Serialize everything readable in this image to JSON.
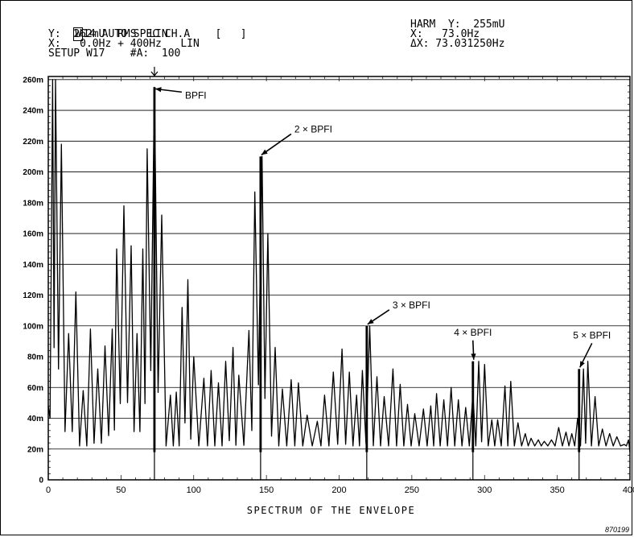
{
  "header": {
    "trace_label": "W",
    "line1": "14 AUTO SPEC CH.A    [   ]",
    "line2": "Y:  262mU  RMS  LIN",
    "line3": "X:   0.0Hz + 400Hz   LIN",
    "line4": "SETUP W17    #A:  100",
    "cursor_line1": "HARM  Y:  255mU",
    "cursor_line2": "X:   73.0Hz",
    "cursor_line3": "ΔX: 73.031250Hz"
  },
  "figure_id": "870199",
  "chart_data": {
    "type": "line",
    "title": "",
    "xlabel": "SPECTRUM OF THE ENVELOPE",
    "ylabel": "",
    "xlim": [
      0,
      400
    ],
    "ylim": [
      0,
      262
    ],
    "x_ticks": [
      0,
      50,
      100,
      150,
      200,
      250,
      300,
      350,
      400
    ],
    "x_tick_labels": [
      "0",
      "50",
      "100",
      "150",
      "200",
      "250",
      "300",
      "350",
      "400"
    ],
    "y_ticks": [
      0,
      20,
      40,
      60,
      80,
      100,
      120,
      140,
      160,
      180,
      200,
      220,
      240,
      260
    ],
    "y_tick_labels": [
      "0",
      "20m",
      "40m",
      "60m",
      "80m",
      "100m",
      "120m",
      "140m",
      "160m",
      "180m",
      "200m",
      "220m",
      "240m",
      "260m"
    ],
    "grid": "horizontal",
    "cursor_x": 73,
    "series": [
      {
        "peaks": [
          [
            3,
            260
          ],
          [
            5,
            260
          ],
          [
            9,
            218
          ],
          [
            14,
            95
          ],
          [
            19,
            122
          ],
          [
            24,
            58
          ],
          [
            29,
            98
          ],
          [
            34,
            72
          ],
          [
            39,
            87
          ],
          [
            44,
            98
          ],
          [
            47,
            150
          ],
          [
            52,
            178
          ],
          [
            57,
            152
          ],
          [
            61,
            95
          ],
          [
            65,
            150
          ],
          [
            68,
            215
          ],
          [
            73,
            255
          ],
          [
            78,
            172
          ],
          [
            84,
            55
          ],
          [
            88,
            57
          ],
          [
            92,
            112
          ],
          [
            96,
            130
          ],
          [
            100,
            80
          ],
          [
            107,
            66
          ],
          [
            112,
            71
          ],
          [
            117,
            63
          ],
          [
            122,
            77
          ],
          [
            127,
            86
          ],
          [
            131,
            68
          ],
          [
            138,
            97
          ],
          [
            142,
            187
          ],
          [
            147,
            210
          ],
          [
            151,
            160
          ],
          [
            156,
            86
          ],
          [
            161,
            59
          ],
          [
            167,
            65
          ],
          [
            172,
            63
          ],
          [
            178,
            42
          ],
          [
            185,
            38
          ],
          [
            190,
            55
          ],
          [
            196,
            70
          ],
          [
            202,
            85
          ],
          [
            207,
            70
          ],
          [
            212,
            55
          ],
          [
            216,
            71
          ],
          [
            221,
            100
          ],
          [
            226,
            67
          ],
          [
            231,
            54
          ],
          [
            237,
            72
          ],
          [
            242,
            62
          ],
          [
            247,
            49
          ],
          [
            252,
            43
          ],
          [
            258,
            46
          ],
          [
            263,
            48
          ],
          [
            267,
            56
          ],
          [
            272,
            52
          ],
          [
            277,
            60
          ],
          [
            282,
            52
          ],
          [
            287,
            47
          ],
          [
            292,
            56
          ],
          [
            296,
            77
          ],
          [
            300,
            75
          ],
          [
            305,
            39
          ],
          [
            309,
            39
          ],
          [
            314,
            61
          ],
          [
            318,
            64
          ],
          [
            323,
            37
          ],
          [
            328,
            30
          ],
          [
            332,
            27
          ],
          [
            337,
            26
          ],
          [
            341,
            25
          ],
          [
            346,
            26
          ],
          [
            351,
            34
          ],
          [
            356,
            31
          ],
          [
            360,
            30
          ],
          [
            364,
            40
          ],
          [
            368,
            72
          ],
          [
            371,
            77
          ],
          [
            376,
            54
          ],
          [
            381,
            33
          ],
          [
            386,
            30
          ],
          [
            391,
            28
          ],
          [
            396,
            23
          ],
          [
            399,
            26
          ]
        ],
        "floor": 22
      }
    ],
    "annotations": [
      {
        "text": "BPFI",
        "x": 73,
        "y": 255
      },
      {
        "text": "2 × BPFI",
        "x": 146,
        "y": 210
      },
      {
        "text": "3 × BPFI",
        "x": 219,
        "y": 100
      },
      {
        "text": "4 × BPFI",
        "x": 292,
        "y": 77
      },
      {
        "text": "5 × BPFI",
        "x": 365,
        "y": 72
      }
    ]
  }
}
